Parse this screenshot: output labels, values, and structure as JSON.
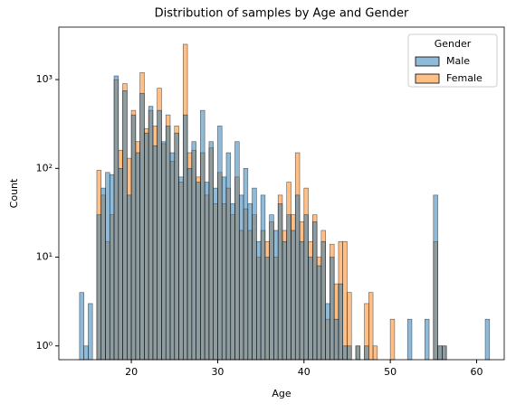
{
  "chart_data": {
    "type": "histogram",
    "title": "Distribution of samples by Age and Gender",
    "xlabel": "Age",
    "ylabel": "Count",
    "legend_title": "Gender",
    "legend": "upper right",
    "yscale": "log",
    "bins": [
      14.0,
      14.5,
      15.0,
      15.5,
      16.0,
      16.5,
      17.0,
      17.5,
      18.0,
      18.5,
      19.0,
      19.5,
      20.0,
      20.5,
      21.0,
      21.5,
      22.0,
      22.5,
      23.0,
      23.5,
      24.0,
      24.5,
      25.0,
      25.5,
      26.0,
      26.5,
      27.0,
      27.5,
      28.0,
      28.5,
      29.0,
      29.5,
      30.0,
      30.5,
      31.0,
      31.5,
      32.0,
      32.5,
      33.0,
      33.5,
      34.0,
      34.5,
      35.0,
      35.5,
      36.0,
      36.5,
      37.0,
      37.5,
      38.0,
      38.5,
      39.0,
      39.5,
      40.0,
      40.5,
      41.0,
      41.5,
      42.0,
      42.5,
      43.0,
      43.5,
      44.0,
      44.5,
      45.0,
      45.5,
      46.0,
      46.5,
      47.0,
      47.5,
      48.0,
      48.5,
      49.0,
      49.5,
      50.0,
      50.5,
      51.0,
      51.5,
      52.0,
      52.5,
      53.0,
      53.5,
      54.0,
      54.5,
      55.0,
      55.5,
      56.0,
      56.5,
      57.0,
      57.5,
      58.0,
      58.5,
      59.0,
      59.5,
      60.0,
      60.5,
      61.0,
      61.5,
      62.0
    ],
    "series": [
      {
        "name": "Male",
        "color": "#1f77b4",
        "values": [
          4,
          1,
          3,
          0,
          30,
          60,
          90,
          85,
          1100,
          100,
          750,
          50,
          400,
          150,
          700,
          250,
          500,
          180,
          450,
          200,
          300,
          150,
          250,
          80,
          400,
          100,
          200,
          70,
          450,
          70,
          200,
          60,
          300,
          80,
          150,
          40,
          200,
          50,
          100,
          40,
          60,
          15,
          50,
          10,
          30,
          20,
          40,
          15,
          30,
          20,
          50,
          15,
          30,
          10,
          25,
          8,
          15,
          3,
          10,
          2,
          5,
          1,
          1,
          0,
          1,
          0,
          1,
          0,
          0,
          0,
          0,
          0,
          0,
          0,
          0,
          0,
          2,
          0,
          0,
          0,
          2,
          0,
          50,
          1,
          1,
          0,
          0,
          0,
          0,
          0,
          0,
          0,
          0,
          0,
          2,
          0
        ]
      },
      {
        "name": "Female",
        "color": "#ff7f0e",
        "values": [
          0,
          0,
          0,
          0,
          95,
          50,
          15,
          30,
          1000,
          160,
          900,
          130,
          450,
          200,
          1200,
          280,
          450,
          300,
          800,
          190,
          400,
          120,
          300,
          70,
          2500,
          150,
          160,
          80,
          150,
          50,
          170,
          40,
          90,
          40,
          60,
          30,
          80,
          20,
          35,
          20,
          30,
          10,
          20,
          15,
          25,
          10,
          50,
          20,
          70,
          30,
          150,
          25,
          60,
          15,
          30,
          10,
          20,
          2,
          14,
          5,
          15,
          15,
          4,
          0,
          1,
          0,
          3,
          4,
          1,
          0,
          0,
          0,
          2,
          0,
          0,
          0,
          0,
          0,
          0,
          0,
          0,
          0,
          15,
          1,
          1,
          0,
          0,
          0,
          0,
          0,
          0,
          0,
          0,
          0,
          0,
          0
        ]
      }
    ],
    "xlim": [
      11.6,
      63.2
    ],
    "xticks": [
      20,
      30,
      40,
      50,
      60
    ],
    "ylim": [
      0.7,
      3900
    ],
    "yticks": [
      {
        "value": 1,
        "label": "10⁰"
      },
      {
        "value": 10,
        "label": "10¹"
      },
      {
        "value": 100,
        "label": "10²"
      },
      {
        "value": 1000,
        "label": "10³"
      }
    ]
  }
}
